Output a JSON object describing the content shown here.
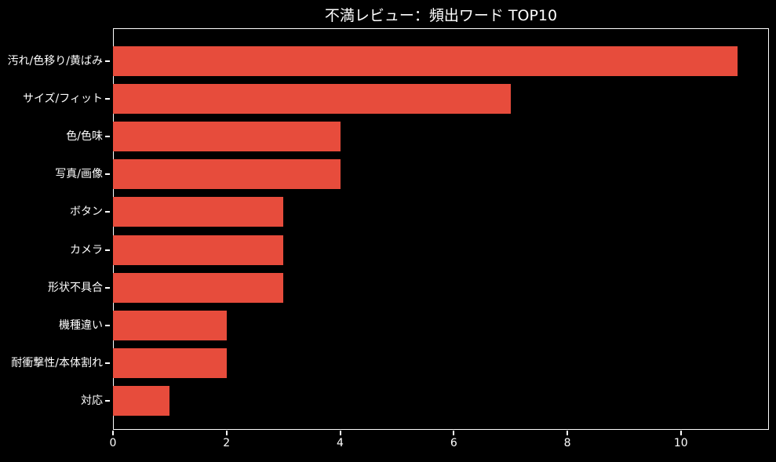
{
  "figure": {
    "background": "#000000",
    "text_color": "#ffffff"
  },
  "chart_data": {
    "type": "bar",
    "orientation": "horizontal",
    "title": "不満レビュー：頻出ワード TOP10",
    "categories": [
      "汚れ/色移り/黄ばみ",
      "サイズ/フィット",
      "色/色味",
      "写真/画像",
      "ボタン",
      "カメラ",
      "形状不具合",
      "機種違い",
      "耐衝撃性/本体割れ",
      "対応"
    ],
    "values": [
      11,
      7,
      4,
      4,
      3,
      3,
      3,
      2,
      2,
      1
    ],
    "xlabel": "",
    "ylabel": "",
    "xlim": [
      0,
      11.55
    ],
    "xticks": [
      0,
      2,
      4,
      6,
      8,
      10
    ],
    "bar_color": "#e74c3c",
    "background": "#000000",
    "axis_color": "#ffffff",
    "grid": false,
    "legend": false
  }
}
